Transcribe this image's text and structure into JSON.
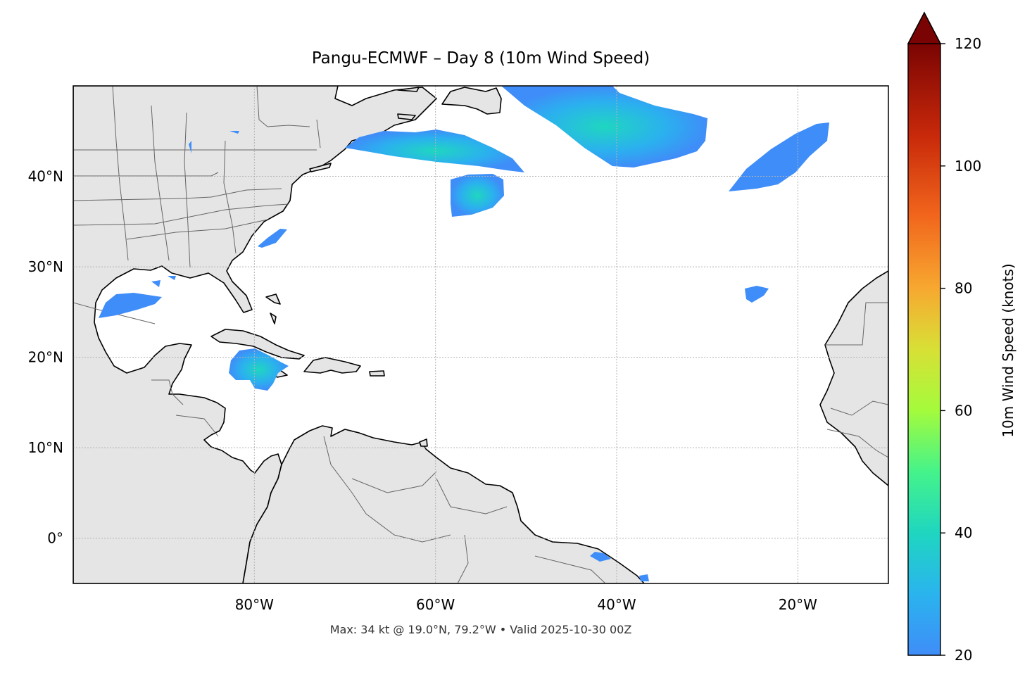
{
  "title": "Pangu-ECMWF – Day 8 (10m Wind Speed)",
  "footer": "Max: 34 kt @ 19.0°N, 79.2°W • Valid 2025-10-30 00Z",
  "map": {
    "projection": "PlateCarree",
    "lon_range": [
      -100,
      -10
    ],
    "lat_range": [
      -5,
      50
    ],
    "lon_ticks": [
      {
        "value": -80,
        "label": "80°W"
      },
      {
        "value": -60,
        "label": "60°W"
      },
      {
        "value": -40,
        "label": "40°W"
      },
      {
        "value": -20,
        "label": "20°W"
      }
    ],
    "lat_ticks": [
      {
        "value": 0,
        "label": "0°"
      },
      {
        "value": 10,
        "label": "10°N"
      },
      {
        "value": 20,
        "label": "20°N"
      },
      {
        "value": 30,
        "label": "30°N"
      },
      {
        "value": 40,
        "label": "40°N"
      }
    ],
    "gridlines": true,
    "land_color": "#e5e5e5",
    "coastline_color": "#000000",
    "border_color": "#666666",
    "max_wind": {
      "speed_kt": 34,
      "lat": 19.0,
      "lon": -79.2
    }
  },
  "colorbar": {
    "label": "10m Wind Speed (knots)",
    "min": 20,
    "max": 120,
    "extend": "max",
    "ticks": [
      {
        "value": 20,
        "label": "20"
      },
      {
        "value": 40,
        "label": "40"
      },
      {
        "value": 60,
        "label": "60"
      },
      {
        "value": 80,
        "label": "80"
      },
      {
        "value": 100,
        "label": "100"
      },
      {
        "value": 120,
        "label": "120"
      }
    ],
    "colormap": [
      "#3f8df8",
      "#1fc7d6",
      "#2ef19a",
      "#a4fb3c",
      "#f7a830",
      "#e44e12",
      "#9c1404",
      "#7a0403"
    ]
  }
}
